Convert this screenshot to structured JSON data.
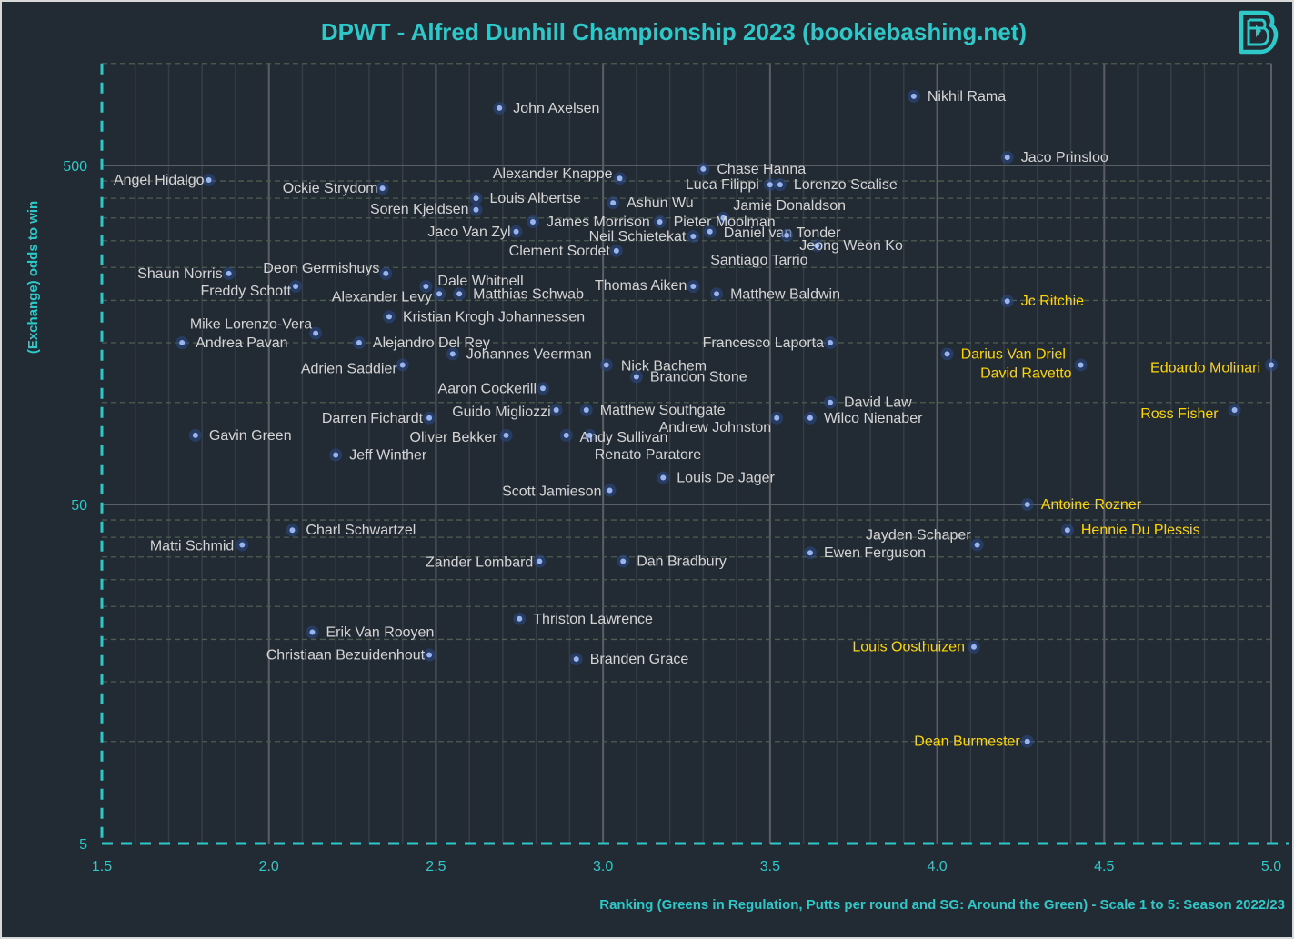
{
  "chart_data": {
    "type": "scatter",
    "title": "DPWT - Alfred Dunhill Championship 2023 (bookiebashing.net)",
    "xlabel": "Ranking (Greens in Regulation, Putts per round and SG: Around the Green) - Scale 1 to 5: Season 2022/23",
    "ylabel": "(Exchange) odds to win",
    "xlim": [
      1.5,
      5.0
    ],
    "ylim": [
      5,
      1000
    ],
    "y_scale": "log",
    "x_ticks": [
      "1.5",
      "2.0",
      "2.5",
      "3.0",
      "3.5",
      "4.0",
      "4.5",
      "5.0"
    ],
    "y_ticks": [
      "5",
      "50",
      "500"
    ],
    "grid": true,
    "colors": {
      "background": "#222a34",
      "accent": "#2ec8c8",
      "point": "#9ab4ee",
      "label": "#d4d4d4",
      "highlight": "#ffd700"
    },
    "points": [
      {
        "name": "John Axelsen",
        "x": 2.69,
        "y": 738
      },
      {
        "name": "Nikhil Rama",
        "x": 3.93,
        "y": 800
      },
      {
        "name": "Jaco Prinsloo",
        "x": 4.21,
        "y": 528
      },
      {
        "name": "Angel Hidalgo",
        "x": 1.82,
        "y": 453
      },
      {
        "name": "Ockie Strydom",
        "x": 2.34,
        "y": 428
      },
      {
        "name": "Alexander Knappe",
        "x": 3.05,
        "y": 458
      },
      {
        "name": "Chase Hanna",
        "x": 3.3,
        "y": 488
      },
      {
        "name": "Luca Filippi",
        "x": 3.5,
        "y": 439
      },
      {
        "name": "Lorenzo Scalise",
        "x": 3.53,
        "y": 439
      },
      {
        "name": "Louis Albertse",
        "x": 2.62,
        "y": 400
      },
      {
        "name": "Soren Kjeldsen",
        "x": 2.62,
        "y": 370
      },
      {
        "name": "Ashun Wu",
        "x": 3.03,
        "y": 388
      },
      {
        "name": "Jamie Donaldson",
        "x": 3.36,
        "y": 350
      },
      {
        "name": "James Morrison",
        "x": 2.79,
        "y": 341
      },
      {
        "name": "Pieter Moolman",
        "x": 3.17,
        "y": 341
      },
      {
        "name": "Jaco Van Zyl",
        "x": 2.74,
        "y": 319
      },
      {
        "name": "Neil Schietekat",
        "x": 3.27,
        "y": 309
      },
      {
        "name": "Daniel van Tonder",
        "x": 3.32,
        "y": 319
      },
      {
        "name": "Santiago Tarrio",
        "x": 3.55,
        "y": 311
      },
      {
        "name": "Jeong Weon Ko",
        "x": 3.64,
        "y": 290
      },
      {
        "name": "Clement Sordet",
        "x": 3.04,
        "y": 280
      },
      {
        "name": "Thomas Aiken",
        "x": 3.27,
        "y": 220
      },
      {
        "name": "Matthew Baldwin",
        "x": 3.34,
        "y": 209
      },
      {
        "name": "Shaun Norris",
        "x": 1.88,
        "y": 240
      },
      {
        "name": "Deon Germishuys",
        "x": 2.35,
        "y": 240
      },
      {
        "name": "Freddy Schott",
        "x": 2.08,
        "y": 220
      },
      {
        "name": "Dale Whitnell",
        "x": 2.47,
        "y": 220
      },
      {
        "name": "Alexander Levy",
        "x": 2.51,
        "y": 209
      },
      {
        "name": "Matthias Schwab",
        "x": 2.57,
        "y": 209
      },
      {
        "name": "Kristian Krogh Johannessen",
        "x": 2.36,
        "y": 179
      },
      {
        "name": "Mike Lorenzo-Vera",
        "x": 2.14,
        "y": 160
      },
      {
        "name": "Andrea Pavan",
        "x": 1.74,
        "y": 150
      },
      {
        "name": "Alejandro Del Rey",
        "x": 2.27,
        "y": 150
      },
      {
        "name": "Johannes Veerman",
        "x": 2.55,
        "y": 139
      },
      {
        "name": "Adrien Saddier",
        "x": 2.4,
        "y": 129
      },
      {
        "name": "Nick Bachem",
        "x": 3.01,
        "y": 129
      },
      {
        "name": "Brandon Stone",
        "x": 3.1,
        "y": 119
      },
      {
        "name": "Aaron Cockerill",
        "x": 2.82,
        "y": 110
      },
      {
        "name": "Francesco Laporta",
        "x": 3.68,
        "y": 150
      },
      {
        "name": "David Law",
        "x": 3.68,
        "y": 100
      },
      {
        "name": "Guido Migliozzi",
        "x": 2.86,
        "y": 95
      },
      {
        "name": "Matthew Southgate",
        "x": 2.95,
        "y": 95
      },
      {
        "name": "Darren Fichardt",
        "x": 2.48,
        "y": 90
      },
      {
        "name": "Andrew Johnston",
        "x": 3.52,
        "y": 90
      },
      {
        "name": "Wilco Nienaber",
        "x": 3.62,
        "y": 90
      },
      {
        "name": "Oliver Bekker",
        "x": 2.71,
        "y": 80
      },
      {
        "name": "Renato Paratore",
        "x": 2.89,
        "y": 80
      },
      {
        "name": "Andy Sullivan",
        "x": 2.96,
        "y": 80
      },
      {
        "name": "Gavin Green",
        "x": 1.78,
        "y": 80
      },
      {
        "name": "Jeff Winther",
        "x": 2.2,
        "y": 70
      },
      {
        "name": "Louis De Jager",
        "x": 3.18,
        "y": 60
      },
      {
        "name": "Scott Jamieson",
        "x": 3.02,
        "y": 55
      },
      {
        "name": "Darius Van Driel",
        "x": 4.03,
        "y": 139,
        "highlight": true
      },
      {
        "name": "David Ravetto",
        "x": 4.43,
        "y": 129,
        "highlight": true
      },
      {
        "name": "Edoardo Molinari",
        "x": 5.0,
        "y": 129,
        "highlight": true,
        "emphasis": true
      },
      {
        "name": "Ross Fisher",
        "x": 4.89,
        "y": 95,
        "highlight": true,
        "emphasis": true
      },
      {
        "name": "Jc Ritchie",
        "x": 4.21,
        "y": 199,
        "highlight": true
      },
      {
        "name": "Antoine Rozner",
        "x": 4.27,
        "y": 50,
        "highlight": true
      },
      {
        "name": "Hennie Du Plessis",
        "x": 4.39,
        "y": 42,
        "highlight": true
      },
      {
        "name": "Jayden Schaper",
        "x": 4.12,
        "y": 38
      },
      {
        "name": "Ewen Ferguson",
        "x": 3.62,
        "y": 36
      },
      {
        "name": "Charl Schwartzel",
        "x": 2.07,
        "y": 42
      },
      {
        "name": "Matti Schmid",
        "x": 1.92,
        "y": 38
      },
      {
        "name": "Zander Lombard",
        "x": 2.81,
        "y": 34
      },
      {
        "name": "Dan Bradbury",
        "x": 3.06,
        "y": 34
      },
      {
        "name": "Thriston Lawrence",
        "x": 2.75,
        "y": 23
      },
      {
        "name": "Erik Van Rooyen",
        "x": 2.13,
        "y": 21
      },
      {
        "name": "Christiaan Bezuidenhout",
        "x": 2.48,
        "y": 18
      },
      {
        "name": "Branden Grace",
        "x": 2.92,
        "y": 17.5
      },
      {
        "name": "Louis Oosthuizen",
        "x": 4.11,
        "y": 19,
        "highlight": true
      },
      {
        "name": "Dean Burmester",
        "x": 4.27,
        "y": 10,
        "highlight": true
      }
    ]
  },
  "logo": {
    "text": "B",
    "icon": "bookiebashing-logo"
  }
}
